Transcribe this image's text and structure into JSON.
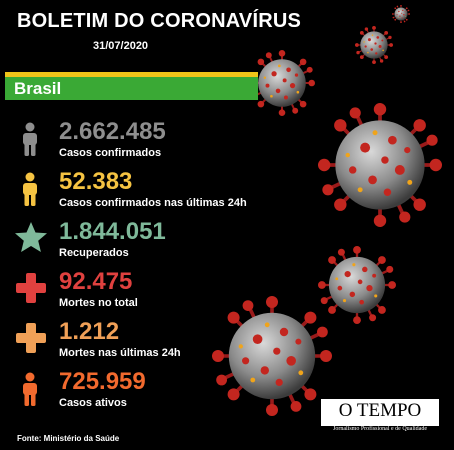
{
  "header": {
    "title": "BOLETIM DO CORONAVÍRUS",
    "date": "31/07/2020"
  },
  "region": {
    "label": "Brasil",
    "band_color": "#3aa935",
    "stripe_color": "#f0c419"
  },
  "stats": [
    {
      "value": "2.662.485",
      "label": "Casos confirmados",
      "icon": "person-icon",
      "color": "#8e8e8e"
    },
    {
      "value": "52.383",
      "label": "Casos confirmados  nas últimas 24h",
      "icon": "person-icon",
      "color": "#f5c342"
    },
    {
      "value": "1.844.051",
      "label": "Recuperados",
      "icon": "star-icon",
      "color": "#7fb99a"
    },
    {
      "value": "92.475",
      "label": "Mortes no total",
      "icon": "cross-icon",
      "color": "#e0413f"
    },
    {
      "value": "1.212",
      "label": "Mortes nas últimas 24h",
      "icon": "cross-icon",
      "color": "#f0a057"
    },
    {
      "value": "725.959",
      "label": "Casos ativos",
      "icon": "person-icon",
      "color": "#f26a2e"
    }
  ],
  "footer": {
    "source": "Fonte: Ministério da Saúde",
    "logo_name": "O TEMPO",
    "logo_tagline": "Jornalismo Profissional e de Qualidade"
  }
}
